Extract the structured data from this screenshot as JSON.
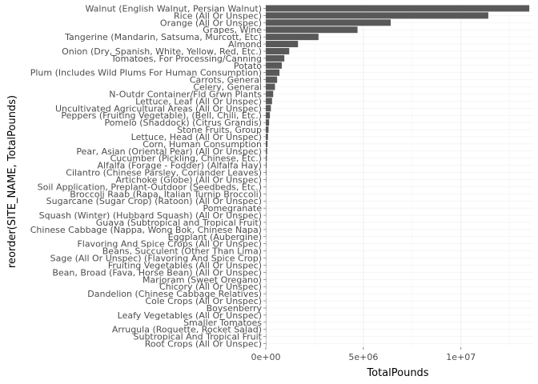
{
  "chart_data": {
    "type": "bar",
    "orientation": "horizontal",
    "xlabel": "TotalPounds",
    "ylabel": "reorder(SITE_NAME, TotalPounds)",
    "xlim": [
      0,
      13700000
    ],
    "x_ticks": [
      {
        "value": 0,
        "label": "0e+00"
      },
      {
        "value": 5000000,
        "label": "5e+06"
      },
      {
        "value": 10000000,
        "label": "1e+07"
      }
    ],
    "grid": true,
    "bar_color": "#595959",
    "categories": [
      "Walnut (English Walnut, Persian Walnut)",
      "Rice (All Or Unspec)",
      "Orange (All Or Unspec)",
      "Grapes, Wine",
      "Tangerine (Mandarin, Satsuma, Murcott, Etc)",
      "Almond",
      "Onion (Dry, Spanish, White, Yellow, Red, Etc.)",
      "Tomatoes, For Processing/Canning",
      "Potato",
      "Plum (Includes Wild Plums For Human Consumption)",
      "Carrots, General",
      "Celery, General",
      "N-Outdr Container/Fld Grwn Plants",
      "Lettuce, Leaf (All Or Unspec)",
      "Uncultivated Agricultural Areas (All Or Unspec)",
      "Peppers (Fruiting Vegetable), (Bell, Chili, Etc.)",
      "Pomelo (Shaddock) (Citrus Grandis)",
      "Stone Fruits, Group",
      "Lettuce, Head (All Or Unspec)",
      "Corn, Human Consumption",
      "Pear, Asian (Oriental Pear) (All Or Unspec)",
      "Cucumber (Pickling, Chinese, Etc.)",
      "Alfalfa (Forage - Fodder) (Alfalfa Hay)",
      "Cilantro (Chinese Parsley, Coriander Leaves)",
      "Artichoke (Globe) (All Or Unspec)",
      "Soil Application, Preplant-Outdoor (Seedbeds, Etc.)",
      "Broccoli Raab (Rapa, Italian Turnip Broccoli)",
      "Sugarcane (Sugar Crop) (Ratoon) (All Or Unspec)",
      "Pomegranate",
      "Squash (Winter) (Hubbard Squash) (All Or Unspec)",
      "Guava (Subtropical and Tropical Fruit)",
      "Chinese Cabbage (Nappa, Wong Bok, Chinese Napa)",
      "Eggplant (Aubergine)",
      "Flavoring And Spice Crops (All Or Unspec)",
      "Beans, Succulent (Other Than Lima)",
      "Sage (All Or Unspec) (Flavoring And Spice Crop)",
      "Fruiting Vegetables (All Or Unspec)",
      "Bean, Broad (Fava, Horse Bean) (All Or Unspec)",
      "Marjoram (Sweet Oregano)",
      "Chicory (All Or Unspec)",
      "Dandelion (Chinese Cabbage Relatives)",
      "Cole Crops (All Or Unspec)",
      "Boysenberry",
      "Leafy Vegetables (All Or Unspec)",
      "Smaller Tomatoes",
      "Arrugula (Roquette, Rocket Salad)",
      "Subtropical And Tropical Fruit",
      "Root Crops (All Or Unspec)"
    ],
    "values": [
      13500000,
      11400000,
      6400000,
      4700000,
      2700000,
      1650000,
      1200000,
      950000,
      820000,
      700000,
      580000,
      470000,
      380000,
      320000,
      260000,
      210000,
      170000,
      140000,
      110000,
      90000,
      70000,
      55000,
      42000,
      32000,
      25000,
      19000,
      15000,
      12000,
      9000,
      7000,
      5500,
      4300,
      3300,
      2600,
      2000,
      1500,
      1200,
      900,
      700,
      550,
      420,
      320,
      250,
      190,
      140,
      100,
      70,
      40
    ]
  }
}
